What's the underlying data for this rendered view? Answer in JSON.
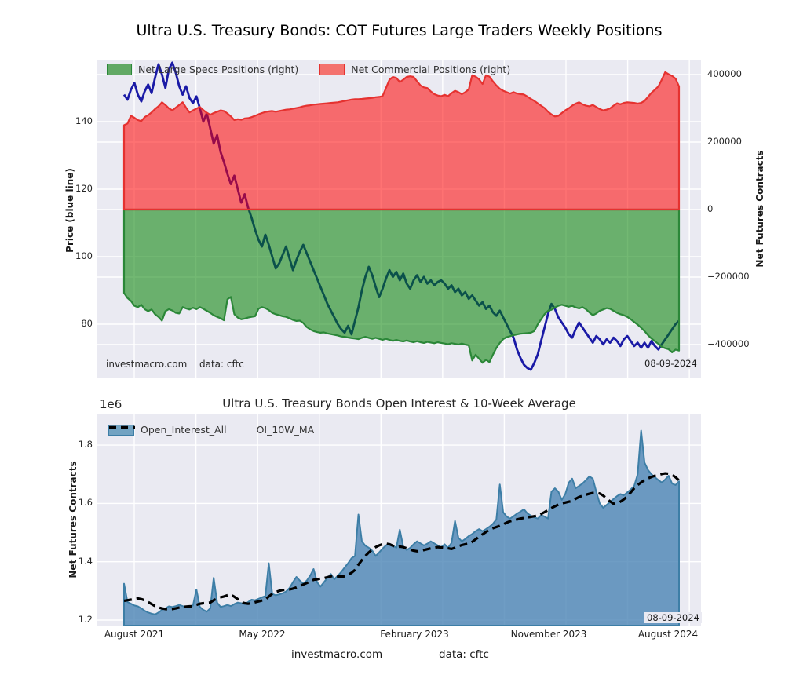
{
  "figure": {
    "title": "Ultra U.S. Treasury Bonds: COT Futures Large Traders Weekly Positions",
    "background": "#ffffff"
  },
  "footer": {
    "site": "investmacro.com",
    "source": "data: cftc"
  },
  "colors": {
    "figure_bg": "#ffffff",
    "axes_bg": "#eaeaf2",
    "grid": "#ffffff",
    "price_line": "#1a1aa6",
    "commercial_line": "#e53230",
    "commercial_fill": "rgba(255,0,0,0.55)",
    "specs_line": "#2b8738",
    "specs_fill": "rgba(0,128,0,0.55)",
    "oi_line": "#3d7ea6",
    "oi_fill": "rgba(70,130,180,0.78)",
    "ma_line": "#000000",
    "legend_swatch_specs": "#62a965",
    "legend_swatch_commercial": "#f4726e",
    "legend_swatch_oi": "#72a3c2"
  },
  "chart_data": [
    {
      "type": "area",
      "title": "Ultra U.S. Treasury Bonds: COT Futures Large Traders Weekly Positions",
      "grid": true,
      "legend_position": "upper-left",
      "annotations": {
        "site": "investmacro.com",
        "source": "data: cftc",
        "date": "08-09-2024"
      },
      "axes": {
        "left": {
          "label": "Price (blue line)",
          "tick_labels": [
            "140",
            "120",
            "100",
            "80"
          ],
          "tick_values": [
            140,
            120,
            100,
            80
          ],
          "range": [
            64.2,
            158.4
          ]
        },
        "right": {
          "label": "Net Futures Contracts",
          "tick_labels": [
            "400000",
            "200000",
            "0",
            "−200000",
            "−400000"
          ],
          "tick_values": [
            400000,
            200000,
            0,
            -200000,
            -400000
          ],
          "range": [
            -497000,
            444000
          ]
        },
        "x": {
          "tick_labels": [],
          "start": "August 2021",
          "end": "August 2024",
          "unit": "weekly"
        }
      },
      "series": [
        {
          "name": "Price",
          "axis": "left",
          "type": "line",
          "color": "#1a1aa6",
          "values": [
            148.0,
            146.5,
            149.5,
            151.5,
            148.0,
            146.0,
            149.0,
            151.0,
            148.5,
            153.0,
            157.0,
            154.0,
            150.0,
            155.5,
            157.5,
            154.5,
            150.5,
            148.0,
            150.5,
            147.0,
            145.5,
            147.5,
            144.0,
            140.0,
            142.5,
            138.0,
            133.5,
            136.0,
            131.0,
            128.0,
            124.5,
            121.5,
            124.0,
            120.0,
            116.0,
            118.5,
            114.5,
            111.5,
            108.0,
            105.0,
            103.0,
            106.5,
            103.5,
            100.0,
            96.5,
            98.0,
            100.5,
            103.0,
            99.5,
            96.0,
            99.0,
            101.5,
            103.5,
            101.0,
            98.5,
            96.0,
            93.5,
            91.0,
            88.5,
            86.0,
            84.0,
            82.0,
            80.0,
            78.5,
            77.5,
            79.5,
            77.0,
            81.0,
            85.0,
            90.0,
            94.0,
            97.0,
            94.5,
            91.0,
            88.0,
            90.5,
            93.5,
            96.0,
            94.0,
            95.5,
            93.0,
            95.0,
            92.0,
            90.5,
            93.0,
            94.5,
            92.5,
            94.0,
            92.0,
            93.0,
            91.5,
            92.5,
            93.0,
            92.0,
            90.5,
            91.5,
            89.5,
            90.5,
            88.5,
            89.5,
            87.5,
            88.5,
            87.0,
            85.5,
            86.5,
            84.5,
            85.5,
            83.5,
            82.5,
            84.0,
            82.0,
            80.0,
            78.0,
            76.0,
            72.5,
            70.0,
            68.0,
            67.0,
            66.5,
            68.5,
            71.0,
            75.0,
            79.0,
            83.0,
            86.0,
            84.5,
            82.0,
            80.5,
            79.0,
            77.0,
            76.0,
            78.5,
            80.5,
            79.0,
            77.5,
            76.0,
            74.5,
            76.5,
            75.5,
            74.0,
            75.5,
            74.5,
            76.0,
            75.0,
            73.5,
            75.5,
            76.5,
            75.0,
            73.5,
            74.5,
            73.0,
            74.5,
            73.0,
            75.0,
            73.5,
            72.5,
            74.0,
            75.5,
            77.0,
            78.5,
            80.0,
            81.0
          ]
        },
        {
          "name": "Net Large Specs Positions (right)",
          "axis": "right",
          "type": "area",
          "line_color": "#2b8738",
          "fill_color": "rgba(0,128,0,0.55)",
          "values": [
            -247000,
            -262000,
            -271000,
            -285000,
            -289000,
            -282000,
            -295000,
            -301000,
            -296000,
            -310000,
            -318000,
            -329000,
            -301000,
            -295000,
            -299000,
            -306000,
            -308000,
            -289000,
            -293000,
            -296000,
            -291000,
            -295000,
            -289000,
            -294000,
            -300000,
            -306000,
            -313000,
            -318000,
            -322000,
            -328000,
            -266000,
            -259000,
            -310000,
            -320000,
            -325000,
            -323000,
            -320000,
            -318000,
            -316000,
            -294000,
            -289000,
            -292000,
            -298000,
            -306000,
            -310000,
            -313000,
            -316000,
            -318000,
            -322000,
            -327000,
            -330000,
            -329000,
            -336000,
            -348000,
            -355000,
            -360000,
            -363000,
            -365000,
            -364000,
            -367000,
            -369000,
            -371000,
            -373000,
            -376000,
            -377000,
            -379000,
            -381000,
            -382000,
            -384000,
            -380000,
            -377000,
            -380000,
            -383000,
            -380000,
            -383000,
            -386000,
            -383000,
            -386000,
            -389000,
            -386000,
            -389000,
            -391000,
            -388000,
            -391000,
            -393000,
            -390000,
            -393000,
            -395000,
            -392000,
            -394000,
            -396000,
            -393000,
            -395000,
            -397000,
            -399000,
            -396000,
            -398000,
            -400000,
            -397000,
            -400000,
            -402000,
            -447000,
            -430000,
            -442000,
            -454000,
            -445000,
            -452000,
            -430000,
            -410000,
            -395000,
            -384000,
            -378000,
            -375000,
            -372000,
            -370000,
            -368000,
            -367000,
            -366000,
            -365000,
            -360000,
            -340000,
            -325000,
            -310000,
            -300000,
            -297000,
            -290000,
            -285000,
            -282000,
            -285000,
            -288000,
            -285000,
            -290000,
            -293000,
            -289000,
            -295000,
            -305000,
            -313000,
            -308000,
            -300000,
            -296000,
            -292000,
            -294000,
            -300000,
            -306000,
            -310000,
            -313000,
            -318000,
            -325000,
            -333000,
            -341000,
            -350000,
            -360000,
            -372000,
            -382000,
            -390000,
            -398000,
            -407000,
            -411000,
            -414000,
            -423000,
            -415000,
            -418000
          ]
        },
        {
          "name": "Net Commercial Positions (right)",
          "axis": "right",
          "type": "area",
          "line_color": "#e53230",
          "fill_color": "rgba(255,0,0,0.55)",
          "values": [
            250000,
            255000,
            278000,
            272000,
            265000,
            262000,
            274000,
            280000,
            288000,
            298000,
            306000,
            318000,
            310000,
            300000,
            294000,
            302000,
            310000,
            318000,
            302000,
            288000,
            294000,
            299000,
            304000,
            295000,
            287000,
            281000,
            286000,
            290000,
            294000,
            292000,
            285000,
            276000,
            265000,
            268000,
            266000,
            270000,
            271000,
            274000,
            278000,
            282000,
            286000,
            289000,
            291000,
            292000,
            290000,
            292000,
            294000,
            296000,
            297000,
            299000,
            301000,
            303000,
            306000,
            308000,
            309000,
            311000,
            312000,
            313000,
            314000,
            315000,
            316000,
            317000,
            318000,
            320000,
            322000,
            324000,
            326000,
            327000,
            327000,
            328000,
            329000,
            330000,
            331000,
            333000,
            334000,
            336000,
            360000,
            385000,
            393000,
            390000,
            378000,
            385000,
            393000,
            395000,
            393000,
            380000,
            368000,
            362000,
            360000,
            350000,
            342000,
            338000,
            336000,
            340000,
            336000,
            345000,
            352000,
            348000,
            342000,
            348000,
            356000,
            398000,
            394000,
            386000,
            372000,
            398000,
            394000,
            380000,
            368000,
            358000,
            352000,
            348000,
            344000,
            348000,
            344000,
            342000,
            341000,
            335000,
            328000,
            322000,
            315000,
            308000,
            301000,
            290000,
            282000,
            276000,
            278000,
            286000,
            294000,
            300000,
            308000,
            314000,
            318000,
            312000,
            308000,
            306000,
            310000,
            304000,
            298000,
            294000,
            296000,
            300000,
            308000,
            315000,
            312000,
            316000,
            318000,
            317000,
            316000,
            314000,
            316000,
            322000,
            334000,
            346000,
            355000,
            365000,
            385000,
            407000,
            401000,
            396000,
            388000,
            365000
          ]
        }
      ]
    },
    {
      "type": "area",
      "title": "Ultra U.S. Treasury Bonds Open Interest & 10-Week Average",
      "offset_label": "1e6",
      "grid": true,
      "legend_position": "upper-left",
      "annotations": {
        "date": "08-09-2024"
      },
      "axes": {
        "left": {
          "label": "Net Futures Contracts",
          "tick_labels": [
            "1.8",
            "1.6",
            "1.4",
            "1.2"
          ],
          "tick_values": [
            1.8,
            1.6,
            1.4,
            1.2
          ],
          "range": [
            1.181,
            1.905
          ],
          "multiplier": "1e6"
        },
        "x": {
          "tick_labels": [
            "August 2021",
            "May 2022",
            "February 2023",
            "November 2023",
            "August 2024"
          ],
          "unit": "weekly"
        }
      },
      "series": [
        {
          "name": "Open_Interest_All",
          "type": "area",
          "line_color": "#3d7ea6",
          "fill_color": "rgba(70,130,180,0.78)",
          "values": [
            1.325,
            1.262,
            1.256,
            1.25,
            1.247,
            1.24,
            1.232,
            1.226,
            1.222,
            1.219,
            1.226,
            1.235,
            1.24,
            1.247,
            1.245,
            1.248,
            1.252,
            1.248,
            1.243,
            1.246,
            1.25,
            1.305,
            1.245,
            1.235,
            1.229,
            1.24,
            1.345,
            1.26,
            1.245,
            1.248,
            1.252,
            1.248,
            1.255,
            1.26,
            1.258,
            1.255,
            1.262,
            1.27,
            1.268,
            1.273,
            1.278,
            1.282,
            1.395,
            1.29,
            1.285,
            1.288,
            1.292,
            1.298,
            1.31,
            1.33,
            1.348,
            1.335,
            1.325,
            1.335,
            1.352,
            1.375,
            1.33,
            1.315,
            1.33,
            1.345,
            1.358,
            1.34,
            1.352,
            1.365,
            1.38,
            1.395,
            1.412,
            1.42,
            1.562,
            1.47,
            1.455,
            1.448,
            1.438,
            1.42,
            1.432,
            1.445,
            1.456,
            1.462,
            1.455,
            1.448,
            1.51,
            1.452,
            1.44,
            1.448,
            1.46,
            1.47,
            1.463,
            1.456,
            1.462,
            1.47,
            1.463,
            1.456,
            1.45,
            1.46,
            1.448,
            1.465,
            1.54,
            1.482,
            1.47,
            1.478,
            1.488,
            1.495,
            1.505,
            1.512,
            1.505,
            1.512,
            1.52,
            1.53,
            1.545,
            1.665,
            1.57,
            1.555,
            1.548,
            1.556,
            1.565,
            1.572,
            1.58,
            1.566,
            1.558,
            1.552,
            1.548,
            1.56,
            1.555,
            1.548,
            1.64,
            1.652,
            1.64,
            1.612,
            1.632,
            1.671,
            1.685,
            1.652,
            1.66,
            1.668,
            1.68,
            1.693,
            1.685,
            1.64,
            1.6,
            1.585,
            1.595,
            1.605,
            1.615,
            1.625,
            1.632,
            1.628,
            1.638,
            1.648,
            1.66,
            1.7,
            1.85,
            1.74,
            1.715,
            1.7,
            1.69,
            1.68,
            1.672,
            1.682,
            1.695,
            1.668,
            1.663,
            1.676
          ]
        },
        {
          "name": "OI_10W_MA",
          "type": "dashed-line",
          "color": "#000000",
          "values": [
            1.266,
            1.268,
            1.27,
            1.272,
            1.274,
            1.272,
            1.268,
            1.262,
            1.255,
            1.248,
            1.243,
            1.24,
            1.238,
            1.237,
            1.238,
            1.24,
            1.243,
            1.245,
            1.246,
            1.247,
            1.248,
            1.252,
            1.256,
            1.258,
            1.259,
            1.26,
            1.268,
            1.274,
            1.278,
            1.281,
            1.285,
            1.287,
            1.28,
            1.272,
            1.262,
            1.258,
            1.256,
            1.258,
            1.261,
            1.264,
            1.267,
            1.27,
            1.281,
            1.29,
            1.296,
            1.3,
            1.303,
            1.304,
            1.305,
            1.308,
            1.312,
            1.317,
            1.322,
            1.327,
            1.332,
            1.338,
            1.34,
            1.342,
            1.344,
            1.347,
            1.35,
            1.352,
            1.35,
            1.349,
            1.35,
            1.355,
            1.362,
            1.372,
            1.39,
            1.406,
            1.42,
            1.432,
            1.442,
            1.45,
            1.456,
            1.46,
            1.462,
            1.46,
            1.455,
            1.45,
            1.452,
            1.45,
            1.446,
            1.442,
            1.438,
            1.436,
            1.437,
            1.44,
            1.443,
            1.446,
            1.448,
            1.45,
            1.449,
            1.448,
            1.446,
            1.444,
            1.448,
            1.453,
            1.457,
            1.46,
            1.462,
            1.468,
            1.477,
            1.486,
            1.494,
            1.502,
            1.51,
            1.515,
            1.519,
            1.523,
            1.528,
            1.534,
            1.539,
            1.542,
            1.545,
            1.548,
            1.55,
            1.552,
            1.554,
            1.556,
            1.558,
            1.564,
            1.57,
            1.577,
            1.584,
            1.59,
            1.596,
            1.6,
            1.603,
            1.606,
            1.608,
            1.616,
            1.622,
            1.626,
            1.63,
            1.633,
            1.636,
            1.637,
            1.634,
            1.627,
            1.617,
            1.607,
            1.599,
            1.6,
            1.606,
            1.614,
            1.624,
            1.638,
            1.652,
            1.663,
            1.672,
            1.68,
            1.686,
            1.691,
            1.695,
            1.698,
            1.701,
            1.703,
            1.702,
            1.698,
            1.69,
            1.679
          ]
        }
      ]
    }
  ]
}
